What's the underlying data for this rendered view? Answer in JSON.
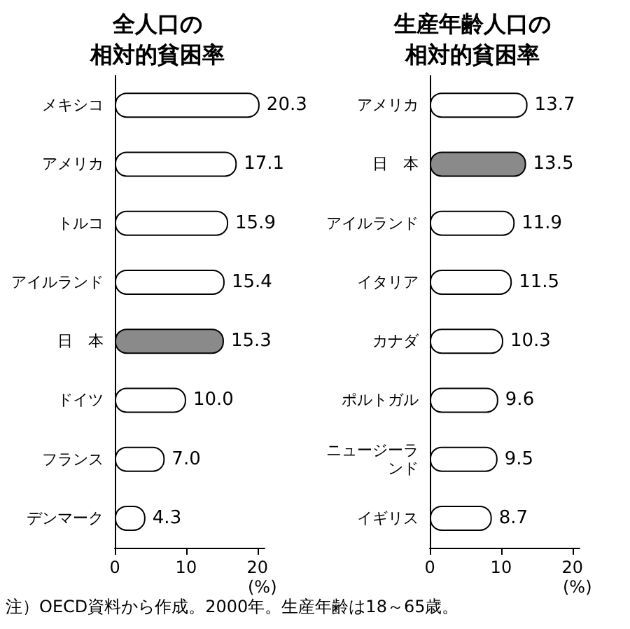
{
  "chart_data": [
    {
      "type": "bar",
      "orientation": "horizontal",
      "title": "全人口の",
      "subtitle": "相対的貧困率",
      "xlabel": "(%)",
      "categories": [
        "メキシコ",
        "アメリカ",
        "トルコ",
        "アイルランド",
        "日　本",
        "ドイツ",
        "フランス",
        "デンマーク"
      ],
      "values": [
        20.3,
        17.1,
        15.9,
        15.4,
        15.3,
        10.0,
        7.0,
        4.3
      ],
      "value_labels": [
        "20.3",
        "17.1",
        "15.9",
        "15.4",
        "15.3",
        "10.0",
        "7.0",
        "4.3"
      ],
      "colors": [
        "#ffffff",
        "#ffffff",
        "#ffffff",
        "#ffffff",
        "#8a8a8a",
        "#ffffff",
        "#ffffff",
        "#ffffff"
      ],
      "xlim": [
        0,
        21
      ],
      "xticks": [
        0,
        10,
        20
      ],
      "grid": false
    },
    {
      "type": "bar",
      "orientation": "horizontal",
      "title": "生産年齢人口の",
      "subtitle": "相対的貧困率",
      "xlabel": "(%)",
      "categories": [
        "アメリカ",
        "日　本",
        "アイルランド",
        "イタリア",
        "カナダ",
        "ポルトガル",
        "ニュージーランド",
        "イギリス"
      ],
      "values": [
        13.7,
        13.5,
        11.9,
        11.5,
        10.3,
        9.6,
        9.5,
        8.7
      ],
      "value_labels": [
        "13.7",
        "13.5",
        "11.9",
        "11.5",
        "10.3",
        "9.6",
        "9.5",
        "8.7"
      ],
      "colors": [
        "#ffffff",
        "#8a8a8a",
        "#ffffff",
        "#ffffff",
        "#ffffff",
        "#ffffff",
        "#ffffff",
        "#ffffff"
      ],
      "xlim": [
        0,
        21
      ],
      "xticks": [
        0,
        10,
        20
      ],
      "grid": false,
      "annotations": [
        "注）OECD資料から作成。2000年。生産年齢は18～65歳。"
      ]
    }
  ]
}
